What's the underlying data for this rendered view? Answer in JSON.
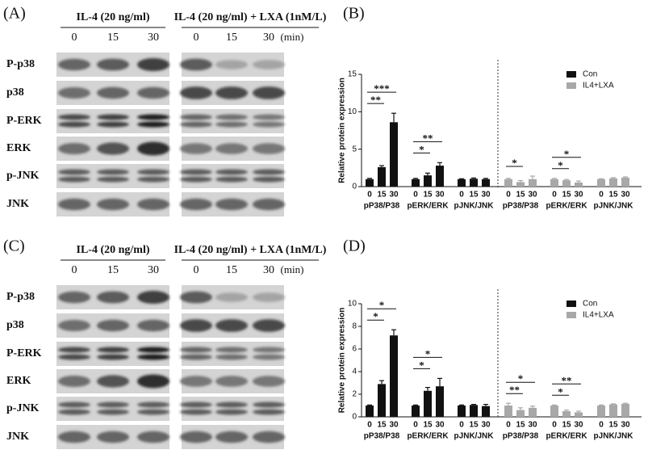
{
  "panels": [
    {
      "label": "(A)",
      "left_header": "IL-4 (20 ng/ml)",
      "right_header": "IL-4 (20 ng/ml) + LXA (1nM/L)",
      "times": [
        "0",
        "15",
        "30"
      ],
      "unit": "(min)",
      "rows": [
        "P-p38",
        "p38",
        "P-ERK",
        "ERK",
        "p-JNK",
        "JNK"
      ]
    },
    {
      "label": "(C)",
      "left_header": "IL-4 (20 ng/ml)",
      "right_header": "IL-4 (20 ng/ml) + LXA (1nM/L)",
      "times": [
        "0",
        "15",
        "30"
      ],
      "unit": "(min)",
      "rows": [
        "P-p38",
        "p38",
        "P-ERK",
        "ERK",
        "p-JNK",
        "JNK"
      ]
    }
  ],
  "chart_data": [
    {
      "type": "bar",
      "label": "(B)",
      "ylabel": "Relative protein expression",
      "categories": [
        "0",
        "15",
        "30",
        "0",
        "15",
        "30",
        "0",
        "15",
        "30",
        "0",
        "15",
        "30",
        "0",
        "15",
        "30",
        "0",
        "15",
        "30"
      ],
      "groups": [
        "pP38/P38",
        "pERK/ERK",
        "pJNK/JNK",
        "pP38/P38",
        "pERK/ERK",
        "pJNK/JNK"
      ],
      "series": [
        {
          "name": "Con",
          "color": "#111111",
          "values": [
            1,
            2.6,
            8.6,
            1,
            1.5,
            2.8,
            1,
            1.05,
            1.0,
            null,
            null,
            null,
            null,
            null,
            null,
            null,
            null,
            null
          ],
          "errors": [
            0.1,
            0.2,
            1.2,
            0.1,
            0.3,
            0.4,
            0.05,
            0.1,
            0.1,
            null,
            null,
            null,
            null,
            null,
            null,
            null,
            null,
            null
          ]
        },
        {
          "name": "IL4+LXA",
          "color": "#a8a8a8",
          "values": [
            null,
            null,
            null,
            null,
            null,
            null,
            null,
            null,
            null,
            1,
            0.6,
            1.0,
            1,
            0.85,
            0.55,
            1,
            1.1,
            1.2
          ],
          "errors": [
            null,
            null,
            null,
            null,
            null,
            null,
            null,
            null,
            null,
            0.1,
            0.2,
            0.4,
            0.1,
            0.1,
            0.2,
            0.05,
            0.1,
            0.1
          ]
        }
      ],
      "annotations": [
        {
          "text": "**",
          "from": 0,
          "to": 1
        },
        {
          "text": "***",
          "from": 0,
          "to": 2
        },
        {
          "text": "*",
          "from": 3,
          "to": 4
        },
        {
          "text": "**",
          "from": 3,
          "to": 5
        },
        {
          "text": "*",
          "from": 9,
          "to": 10
        },
        {
          "text": "*",
          "from": 12,
          "to": 13
        },
        {
          "text": "*",
          "from": 12,
          "to": 14
        }
      ],
      "ylim": [
        0,
        15
      ],
      "yticks": [
        0,
        5,
        10,
        15
      ],
      "legend": "upper right"
    },
    {
      "type": "bar",
      "label": "(D)",
      "ylabel": "Relative protein expression",
      "categories": [
        "0",
        "15",
        "30",
        "0",
        "15",
        "30",
        "0",
        "15",
        "30",
        "0",
        "15",
        "30",
        "0",
        "15",
        "30",
        "0",
        "15",
        "30"
      ],
      "groups": [
        "pP38/P38",
        "pERK/ERK",
        "pJNK/JNK",
        "pP38/P38",
        "pERK/ERK",
        "pJNK/JNK"
      ],
      "series": [
        {
          "name": "Con",
          "color": "#111111",
          "values": [
            1,
            2.9,
            7.2,
            1,
            2.3,
            2.7,
            1,
            1.05,
            0.95,
            null,
            null,
            null,
            null,
            null,
            null,
            null,
            null,
            null
          ],
          "errors": [
            0.05,
            0.3,
            0.5,
            0.05,
            0.3,
            0.7,
            0.05,
            0.05,
            0.15,
            null,
            null,
            null,
            null,
            null,
            null,
            null,
            null,
            null
          ]
        },
        {
          "name": "IL4+LXA",
          "color": "#a8a8a8",
          "values": [
            null,
            null,
            null,
            null,
            null,
            null,
            null,
            null,
            null,
            1,
            0.6,
            0.8,
            1,
            0.5,
            0.4,
            1,
            1.1,
            1.15
          ],
          "errors": [
            null,
            null,
            null,
            null,
            null,
            null,
            null,
            null,
            null,
            0.2,
            0.2,
            0.15,
            0.05,
            0.1,
            0.1,
            0.05,
            0.05,
            0.05
          ]
        }
      ],
      "annotations": [
        {
          "text": "*",
          "from": 0,
          "to": 1
        },
        {
          "text": "*",
          "from": 0,
          "to": 2
        },
        {
          "text": "*",
          "from": 3,
          "to": 4
        },
        {
          "text": "*",
          "from": 3,
          "to": 5
        },
        {
          "text": "**",
          "from": 9,
          "to": 10
        },
        {
          "text": "*",
          "from": 9,
          "to": 11
        },
        {
          "text": "*",
          "from": 12,
          "to": 13
        },
        {
          "text": "**",
          "from": 12,
          "to": 14
        }
      ],
      "ylim": [
        0,
        10
      ],
      "yticks": [
        0,
        2,
        4,
        6,
        8,
        10
      ],
      "legend": "upper right"
    }
  ]
}
